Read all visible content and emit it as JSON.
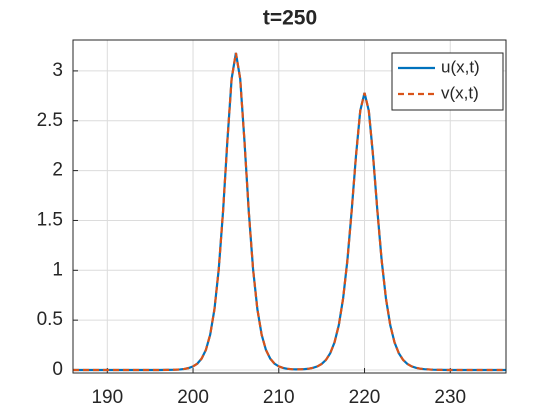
{
  "chart_data": {
    "type": "line",
    "title": "t=250",
    "x": [
      186,
      187,
      188,
      189,
      190,
      191,
      192,
      193,
      194,
      195,
      196,
      197,
      198,
      198.5,
      199,
      199.5,
      200,
      200.5,
      201,
      201.5,
      202,
      202.5,
      203,
      203.5,
      204,
      204.5,
      205,
      205.5,
      206,
      206.5,
      207,
      207.5,
      208,
      208.5,
      209,
      209.5,
      210,
      210.5,
      211,
      211.5,
      212,
      212.5,
      213,
      213.5,
      214,
      214.5,
      215,
      215.5,
      216,
      216.5,
      217,
      217.5,
      218,
      218.5,
      219,
      219.5,
      220,
      220.5,
      221,
      221.5,
      222,
      222.5,
      223,
      223.5,
      224,
      224.5,
      225,
      225.5,
      226,
      226.5,
      227,
      228,
      229,
      230,
      231,
      232,
      233,
      234,
      235,
      236,
      236.5
    ],
    "series": [
      {
        "name": "u(x,t)",
        "color": "#0072bd",
        "values": [
          0,
          0,
          0,
          0,
          0,
          0,
          0,
          0,
          0,
          0,
          0,
          0.001,
          0.003,
          0.006,
          0.011,
          0.02,
          0.036,
          0.064,
          0.114,
          0.202,
          0.355,
          0.611,
          1.013,
          1.591,
          2.293,
          2.921,
          3.18,
          2.921,
          2.293,
          1.591,
          1.013,
          0.611,
          0.355,
          0.202,
          0.114,
          0.064,
          0.036,
          0.021,
          0.012,
          0.008,
          0.006,
          0.007,
          0.009,
          0.013,
          0.022,
          0.036,
          0.061,
          0.101,
          0.168,
          0.277,
          0.45,
          0.716,
          1.098,
          1.596,
          2.144,
          2.6,
          2.78,
          2.6,
          2.144,
          1.596,
          1.098,
          0.716,
          0.45,
          0.277,
          0.168,
          0.101,
          0.061,
          0.036,
          0.022,
          0.013,
          0.008,
          0.003,
          0.001,
          0,
          0,
          0,
          0,
          0,
          0,
          0,
          0
        ]
      },
      {
        "name": "v(x,t)",
        "color": "#d95319",
        "dashed": true,
        "values": [
          0,
          0,
          0,
          0,
          0,
          0,
          0,
          0,
          0,
          0,
          0,
          0.001,
          0.003,
          0.006,
          0.011,
          0.02,
          0.036,
          0.064,
          0.114,
          0.202,
          0.355,
          0.611,
          1.013,
          1.591,
          2.293,
          2.921,
          3.18,
          2.921,
          2.293,
          1.591,
          1.013,
          0.611,
          0.355,
          0.202,
          0.114,
          0.064,
          0.036,
          0.021,
          0.012,
          0.008,
          0.006,
          0.007,
          0.009,
          0.013,
          0.022,
          0.036,
          0.061,
          0.101,
          0.168,
          0.277,
          0.45,
          0.716,
          1.098,
          1.596,
          2.144,
          2.6,
          2.78,
          2.6,
          2.144,
          1.596,
          1.098,
          0.716,
          0.45,
          0.277,
          0.168,
          0.101,
          0.061,
          0.036,
          0.022,
          0.013,
          0.008,
          0.003,
          0.001,
          0,
          0,
          0,
          0,
          0,
          0,
          0,
          0
        ]
      }
    ],
    "xlim": [
      186,
      236.5
    ],
    "xticks": [
      190,
      200,
      210,
      220,
      230
    ],
    "ylim": [
      -0.03,
      3.31
    ],
    "yticks": [
      0,
      0.5,
      1,
      1.5,
      2,
      2.5,
      3
    ],
    "grid": true,
    "legend": "top-right"
  }
}
